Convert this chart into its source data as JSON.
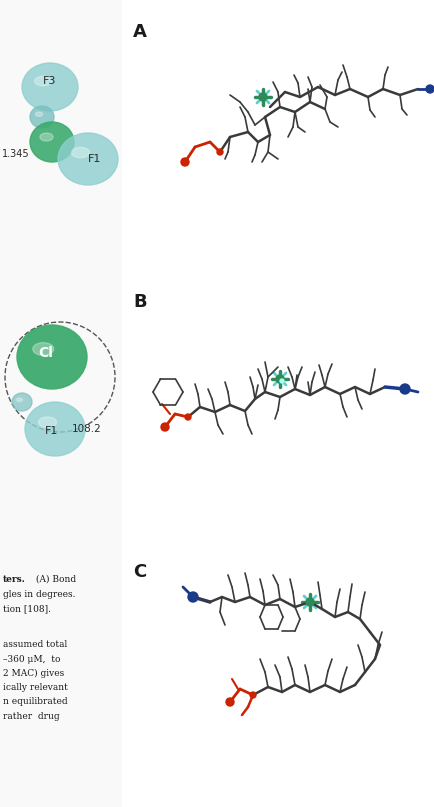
{
  "figure_width": 4.35,
  "figure_height": 8.07,
  "dpi": 100,
  "background_color": "#ffffff",
  "panel_labels": [
    "A",
    "B",
    "C"
  ],
  "mol_color_dark": "#3a3a3a",
  "mol_color_red": "#cc2200",
  "mol_color_blue": "#1a3a8a",
  "mol_color_green": "#2e8b57",
  "mol_color_teal": "#5ecece"
}
